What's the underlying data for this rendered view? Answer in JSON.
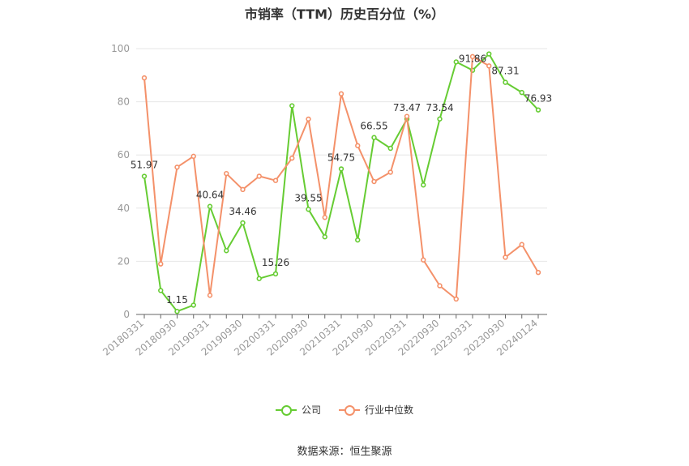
{
  "chart_data": {
    "type": "line",
    "title": "市销率（TTM）历史百分位（%）",
    "ylim": [
      0,
      100
    ],
    "yticks": [
      0,
      20,
      40,
      60,
      80,
      100
    ],
    "grid": true,
    "legend_position": "bottom",
    "x_tick_labels": [
      "20180331",
      "20180930",
      "20190331",
      "20190930",
      "20200331",
      "20200930",
      "20210331",
      "20210930",
      "20220331",
      "20220930",
      "20230331",
      "20230930",
      "20240124"
    ],
    "x": [
      "20180331",
      "20180630",
      "20180930",
      "20181231",
      "20190331",
      "20190630",
      "20190930",
      "20191231",
      "20200331",
      "20200630",
      "20200930",
      "20201231",
      "20210331",
      "20210630",
      "20210930",
      "20211231",
      "20220331",
      "20220630",
      "20220930",
      "20221231",
      "20230331",
      "20230630",
      "20230930",
      "20231231",
      "20240124"
    ],
    "series": [
      {
        "name": "公司",
        "color": "#66cc33",
        "values": [
          51.97,
          9,
          1.15,
          3.5,
          40.64,
          24,
          34.46,
          13.5,
          15.26,
          78.5,
          39.55,
          29.2,
          54.75,
          28,
          66.55,
          62.5,
          73.47,
          48.7,
          73.54,
          95,
          91.86,
          98,
          87.31,
          83.5,
          76.93
        ]
      },
      {
        "name": "行业中位数",
        "color": "#f4916a",
        "values": [
          89,
          19,
          55.4,
          59.5,
          7.2,
          53,
          47,
          52,
          50.4,
          58.8,
          73.5,
          36.5,
          83,
          63.5,
          50,
          53.5,
          74.5,
          20.5,
          10.8,
          5.8,
          97,
          93.5,
          21.5,
          26.3,
          15.8
        ]
      }
    ],
    "data_labels": [
      {
        "index": 0,
        "text": "51.97"
      },
      {
        "index": 2,
        "text": "1.15"
      },
      {
        "index": 4,
        "text": "40.64"
      },
      {
        "index": 6,
        "text": "34.46"
      },
      {
        "index": 8,
        "text": "15.26"
      },
      {
        "index": 10,
        "text": "39.55"
      },
      {
        "index": 12,
        "text": "54.75"
      },
      {
        "index": 14,
        "text": "66.55"
      },
      {
        "index": 16,
        "text": "73.47"
      },
      {
        "index": 18,
        "text": "73.54"
      },
      {
        "index": 20,
        "text": "91.86"
      },
      {
        "index": 22,
        "text": "87.31"
      },
      {
        "index": 24,
        "text": "76.93"
      }
    ]
  },
  "source": "数据来源：恒生聚源"
}
